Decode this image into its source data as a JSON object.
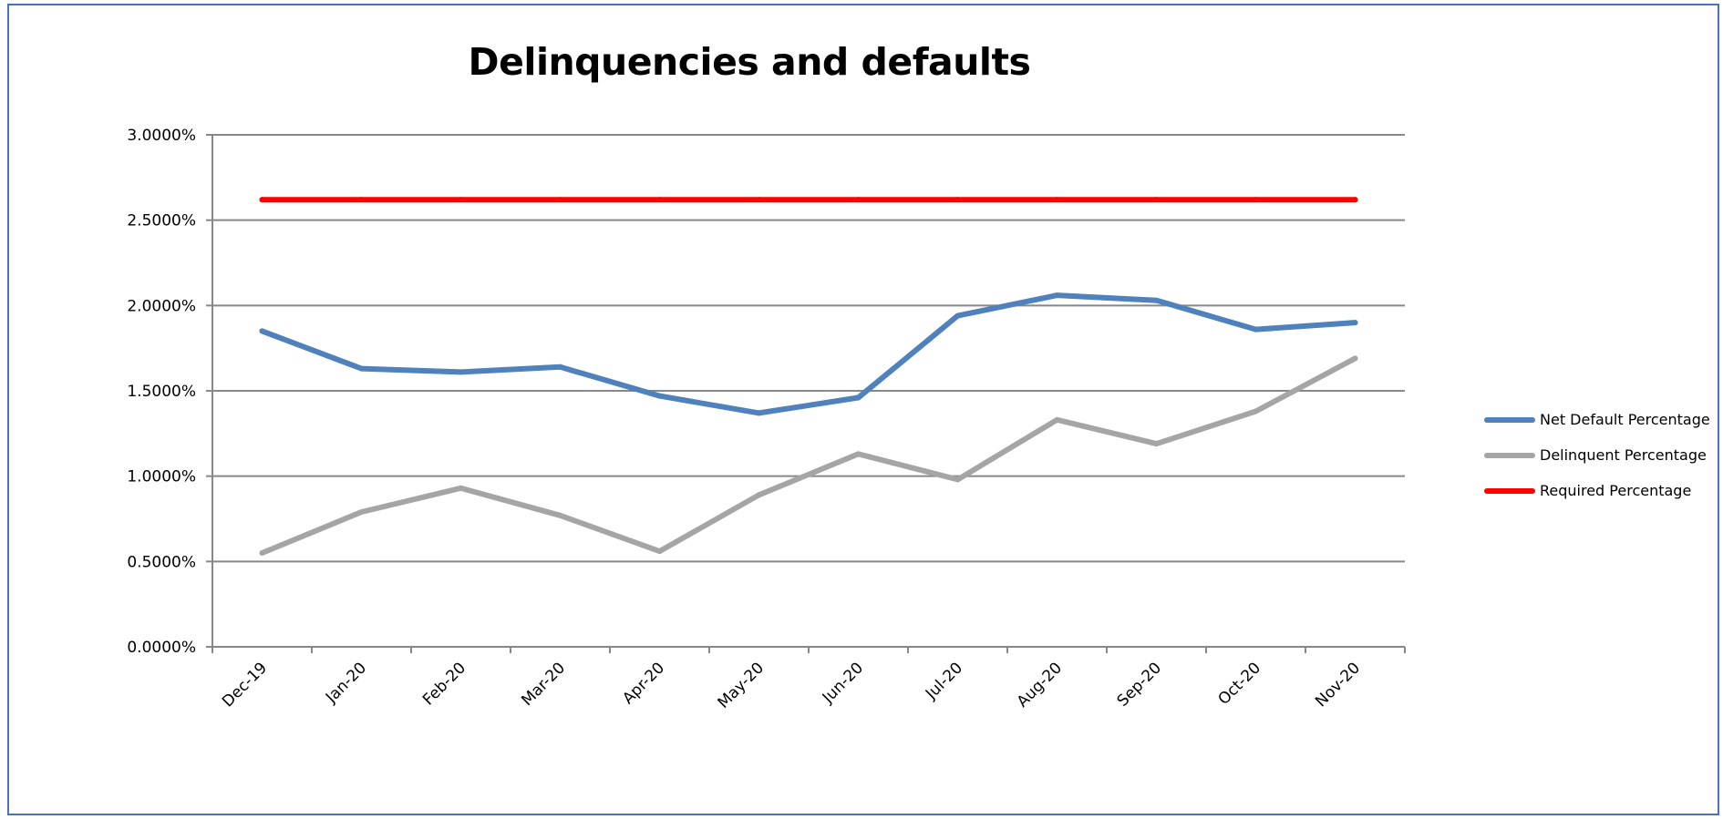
{
  "chart_data": {
    "type": "line",
    "title": "Delinquencies and defaults",
    "xlabel": "",
    "ylabel": "",
    "categories": [
      "Dec-19",
      "Jan-20",
      "Feb-20",
      "Mar-20",
      "Apr-20",
      "May-20",
      "Jun-20",
      "Jul-20",
      "Aug-20",
      "Sep-20",
      "Oct-20",
      "Nov-20"
    ],
    "y_ticks": [
      "0.0000%",
      "0.5000%",
      "1.0000%",
      "1.5000%",
      "2.0000%",
      "2.5000%",
      "3.0000%"
    ],
    "ylim": [
      0,
      3
    ],
    "grid": true,
    "legend_position": "right",
    "series": [
      {
        "name": "Net Default Percentage",
        "color": "#4f81bd",
        "values": [
          1.85,
          1.63,
          1.61,
          1.64,
          1.47,
          1.37,
          1.46,
          1.94,
          2.06,
          2.03,
          1.86,
          1.9
        ]
      },
      {
        "name": "Delinquent Percentage",
        "color": "#a5a5a5",
        "values": [
          0.55,
          0.79,
          0.93,
          0.77,
          0.56,
          0.89,
          1.13,
          0.98,
          1.33,
          1.19,
          1.38,
          1.69
        ]
      },
      {
        "name": "Required Percentage",
        "color": "#ff0000",
        "values": [
          2.62,
          2.62,
          2.62,
          2.62,
          2.62,
          2.62,
          2.62,
          2.62,
          2.62,
          2.62,
          2.62,
          2.62
        ]
      }
    ]
  }
}
